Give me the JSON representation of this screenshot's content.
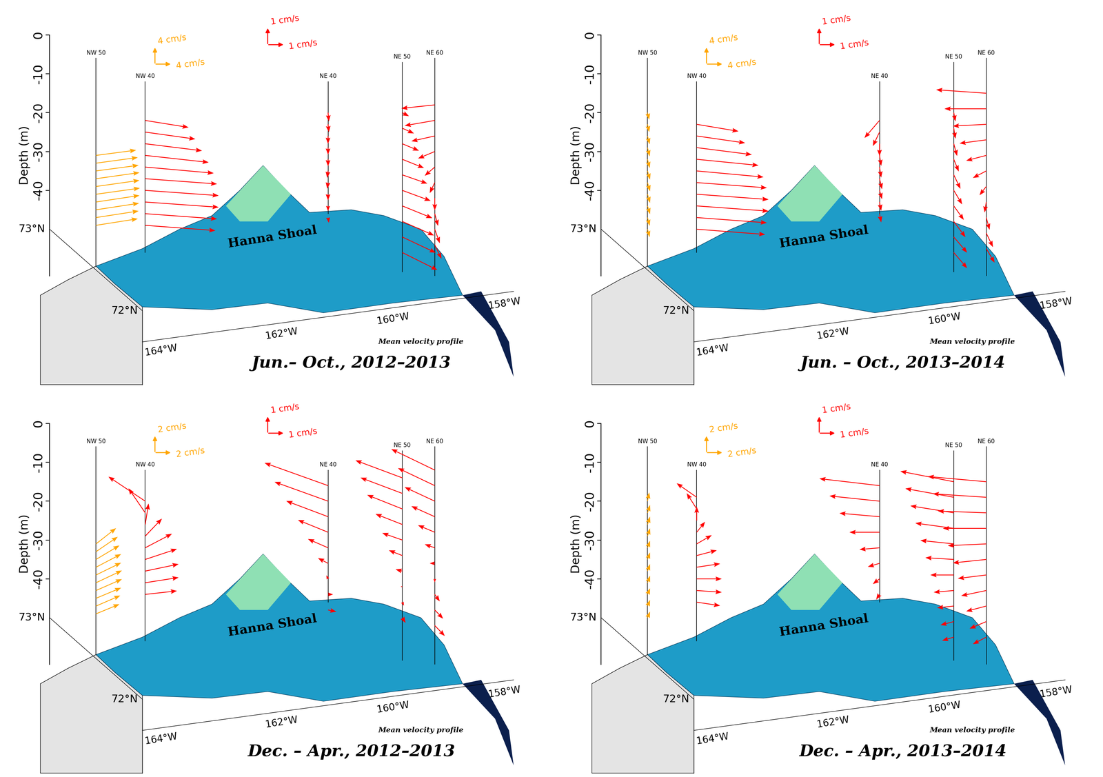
{
  "chart_data": [
    {
      "type": "quiver",
      "title": "Jun.– Oct., 2012–2013",
      "subtitle": "Mean velocity profile",
      "y_label": "Depth (m)",
      "ylim": [
        -62,
        0
      ],
      "yticks": [
        0,
        -10,
        -20,
        -30,
        -40
      ],
      "lat_labels": [
        "73°N",
        "72°N"
      ],
      "lon_labels": [
        "164°W",
        "162°W",
        "160°W",
        "158°W"
      ],
      "feature_label": "Hanna Shoal",
      "scale_keys": [
        {
          "label": "4 cm/s",
          "value": 4,
          "color": "#ffa500"
        },
        {
          "label": "1 cm/s",
          "value": 1,
          "color": "#ff0000"
        }
      ],
      "series": [
        {
          "name": "NW 50",
          "color": "#ffa500",
          "depth": [
            -31,
            -33,
            -35,
            -37,
            -39,
            -41,
            -43,
            -45,
            -47,
            -49
          ],
          "u": [
            9.6,
            10.0,
            10.2,
            10.4,
            10.4,
            10.5,
            10.4,
            10.3,
            10.2,
            10.0
          ],
          "v": [
            1.2,
            1.3,
            1.3,
            1.4,
            1.4,
            1.4,
            1.5,
            1.5,
            1.5,
            1.5
          ]
        },
        {
          "name": "NW 40",
          "color": "#ff0000",
          "depth": [
            -22,
            -25,
            -28,
            -31,
            -34,
            -37,
            -40,
            -43,
            -46,
            -49
          ],
          "u": [
            2.6,
            3.0,
            3.4,
            3.8,
            4.1,
            4.3,
            4.4,
            4.4,
            4.3,
            4.2
          ],
          "v": [
            -0.4,
            -0.4,
            -0.4,
            -0.4,
            -0.35,
            -0.3,
            -0.3,
            -0.3,
            -0.3,
            -0.3
          ]
        },
        {
          "name": "NE 40",
          "color": "#ff0000",
          "depth": [
            -20,
            -23,
            -26,
            -29,
            -32,
            -35,
            -38,
            -41,
            -44,
            -47
          ],
          "u": [
            0.05,
            0.05,
            0.0,
            0.0,
            0.0,
            -0.05,
            -0.05,
            0.0,
            0.0,
            0.05
          ],
          "v": [
            -0.5,
            -0.45,
            -0.45,
            -0.4,
            -0.4,
            -0.4,
            -0.35,
            -0.35,
            -0.3,
            -0.3
          ]
        },
        {
          "name": "NE 50",
          "color": "#ff0000",
          "depth": [
            -20,
            -24,
            -28,
            -32,
            -36,
            -40,
            -44,
            -48,
            -52,
            -56
          ],
          "u": [
            0.4,
            0.7,
            1.0,
            1.3,
            1.5,
            1.7,
            1.8,
            1.9,
            2.0,
            2.1
          ],
          "v": [
            -0.2,
            -0.3,
            -0.4,
            -0.5,
            -0.5,
            -0.6,
            -0.7,
            -0.8,
            -0.9,
            -1.0
          ]
        },
        {
          "name": "NE 60",
          "color": "#ff0000",
          "depth": [
            -18,
            -22,
            -26,
            -30,
            -34,
            -38,
            -42,
            -46,
            -50,
            -54
          ],
          "u": [
            -2.0,
            -1.8,
            -1.4,
            -1.0,
            -0.6,
            -0.3,
            0.0,
            0.2,
            0.3,
            0.4
          ],
          "v": [
            -0.2,
            -0.3,
            -0.3,
            -0.4,
            -0.5,
            -0.6,
            -0.7,
            -0.7,
            -0.8,
            -0.8
          ]
        }
      ]
    },
    {
      "type": "quiver",
      "title": "Jun. – Oct., 2013–2014",
      "subtitle": "Mean velocity profile",
      "y_label": "Depth (m)",
      "ylim": [
        -62,
        0
      ],
      "yticks": [
        0,
        -10,
        -20,
        -30,
        -40
      ],
      "lat_labels": [
        "73°N",
        "72°N"
      ],
      "lon_labels": [
        "164°W",
        "162°W",
        "160°W",
        "158°W"
      ],
      "feature_label": "Hanna Shoal",
      "scale_keys": [
        {
          "label": "4 cm/s",
          "value": 4,
          "color": "#ffa500"
        },
        {
          "label": "1 cm/s",
          "value": 1,
          "color": "#ff0000"
        }
      ],
      "series": [
        {
          "name": "NW 50",
          "color": "#ffa500",
          "depth": [
            -20,
            -23,
            -26,
            -29,
            -32,
            -35,
            -38,
            -41,
            -44,
            -47,
            -50
          ],
          "u": [
            0.4,
            0.4,
            0.5,
            0.5,
            0.5,
            0.6,
            0.6,
            0.6,
            0.6,
            0.5,
            0.5
          ],
          "v": [
            -1.6,
            -1.8,
            -1.9,
            -2.0,
            -2.0,
            -2.0,
            -2.0,
            -2.0,
            -1.9,
            -1.9,
            -1.8
          ]
        },
        {
          "name": "NW 40",
          "color": "#ff0000",
          "depth": [
            -23,
            -26,
            -29,
            -32,
            -35,
            -38,
            -41,
            -44,
            -47,
            -50
          ],
          "u": [
            2.5,
            2.9,
            3.3,
            3.7,
            4.0,
            4.2,
            4.3,
            4.3,
            4.2,
            4.1
          ],
          "v": [
            -0.4,
            -0.4,
            -0.4,
            -0.35,
            -0.35,
            -0.3,
            -0.3,
            -0.3,
            -0.3,
            -0.3
          ]
        },
        {
          "name": "NE 40",
          "color": "#ff0000",
          "depth": [
            -22,
            -25,
            -28,
            -31,
            -34,
            -37,
            -40,
            -43,
            -46
          ],
          "u": [
            -0.9,
            -0.4,
            0.0,
            0.1,
            0.1,
            0.15,
            0.15,
            0.1,
            0.1
          ],
          "v": [
            -1.0,
            -0.8,
            -0.7,
            -0.6,
            -0.6,
            -0.6,
            -0.5,
            -0.5,
            -0.5
          ]
        },
        {
          "name": "NE 50",
          "color": "#ff0000",
          "depth": [
            -20,
            -24,
            -28,
            -32,
            -36,
            -40,
            -44,
            -48,
            -52,
            -56
          ],
          "u": [
            0.1,
            0.1,
            0.2,
            0.3,
            0.4,
            0.5,
            0.6,
            0.7,
            0.8,
            0.8
          ],
          "v": [
            -0.5,
            -0.6,
            -0.7,
            -0.7,
            -0.8,
            -0.8,
            -0.8,
            -0.9,
            -0.9,
            -0.9
          ]
        },
        {
          "name": "NE 60",
          "color": "#ff0000",
          "depth": [
            -15,
            -19,
            -23,
            -27,
            -31,
            -35,
            -39,
            -43,
            -47,
            -51,
            -55
          ],
          "u": [
            -3.0,
            -2.5,
            -2.0,
            -1.6,
            -1.2,
            -0.8,
            -0.4,
            -0.1,
            0.2,
            0.4,
            0.5
          ],
          "v": [
            0.2,
            0.0,
            -0.1,
            -0.2,
            -0.3,
            -0.4,
            -0.5,
            -0.6,
            -0.7,
            -0.8,
            -0.8
          ]
        }
      ]
    },
    {
      "type": "quiver",
      "title": "Dec. – Apr., 2012–2013",
      "subtitle": "Mean velocity profile",
      "y_label": "Depth (m)",
      "ylim": [
        -62,
        0
      ],
      "yticks": [
        0,
        -10,
        -20,
        -30,
        -40
      ],
      "lat_labels": [
        "73°N",
        "72°N"
      ],
      "lon_labels": [
        "164°W",
        "162°W",
        "160°W",
        "158°W"
      ],
      "feature_label": "Hanna Shoal",
      "scale_keys": [
        {
          "label": "2 cm/s",
          "value": 2,
          "color": "#ffa500"
        },
        {
          "label": "1 cm/s",
          "value": 1,
          "color": "#ff0000"
        }
      ],
      "series": [
        {
          "name": "NW 50",
          "color": "#ffa500",
          "depth": [
            -31,
            -33,
            -35,
            -37,
            -39,
            -41,
            -43,
            -45,
            -47,
            -49
          ],
          "u": [
            2.4,
            2.6,
            2.8,
            3.0,
            3.0,
            3.1,
            3.1,
            3.0,
            2.9,
            2.8
          ],
          "v": [
            1.8,
            1.7,
            1.6,
            1.5,
            1.4,
            1.4,
            1.3,
            1.2,
            1.2,
            1.1
          ]
        },
        {
          "name": "NW 40",
          "color": "#ff0000",
          "depth": [
            -20,
            -23,
            -26,
            -29,
            -32,
            -35,
            -38,
            -41,
            -44
          ],
          "u": [
            -2.2,
            -1.0,
            0.2,
            1.0,
            1.6,
            1.9,
            2.0,
            2.0,
            1.9
          ],
          "v": [
            1.4,
            1.4,
            1.2,
            1.0,
            0.8,
            0.6,
            0.4,
            0.3,
            0.2
          ]
        },
        {
          "name": "NE 40",
          "color": "#ff0000",
          "depth": [
            -16,
            -20,
            -24,
            -28,
            -32,
            -36,
            -40,
            -44,
            -48
          ],
          "u": [
            -3.8,
            -3.2,
            -2.5,
            -1.8,
            -1.2,
            -0.6,
            -0.1,
            0.3,
            0.5
          ],
          "v": [
            1.3,
            1.1,
            0.9,
            0.7,
            0.5,
            0.3,
            0.2,
            0.0,
            -0.1
          ]
        },
        {
          "name": "NE 50",
          "color": "#ff0000",
          "depth": [
            -14,
            -18,
            -22,
            -26,
            -30,
            -34,
            -38,
            -42,
            -46,
            -50
          ],
          "u": [
            -2.8,
            -2.5,
            -2.1,
            -1.6,
            -1.2,
            -0.8,
            -0.4,
            -0.1,
            0.1,
            0.2
          ],
          "v": [
            1.0,
            0.9,
            0.8,
            0.6,
            0.4,
            0.3,
            0.1,
            0.0,
            -0.2,
            -0.3
          ]
        },
        {
          "name": "NE 60",
          "color": "#ff0000",
          "depth": [
            -12,
            -16,
            -20,
            -24,
            -28,
            -32,
            -36,
            -40,
            -44,
            -48,
            -52
          ],
          "u": [
            -2.6,
            -2.2,
            -1.8,
            -1.4,
            -1.0,
            -0.6,
            -0.3,
            0.0,
            0.3,
            0.5,
            0.6
          ],
          "v": [
            1.2,
            1.0,
            0.8,
            0.6,
            0.4,
            0.2,
            0.0,
            -0.2,
            -0.4,
            -0.5,
            -0.6
          ]
        }
      ]
    },
    {
      "type": "quiver",
      "title": "Dec. – Apr., 2013–2014",
      "subtitle": "Mean velocity profile",
      "y_label": "Depth (m)",
      "ylim": [
        -62,
        0
      ],
      "yticks": [
        0,
        -10,
        -20,
        -30,
        -40
      ],
      "lat_labels": [
        "73°N",
        "72°N"
      ],
      "lon_labels": [
        "164°W",
        "162°W",
        "160°W",
        "158°W"
      ],
      "feature_label": "Hanna Shoal",
      "scale_keys": [
        {
          "label": "2 cm/s",
          "value": 2,
          "color": "#ffa500"
        },
        {
          "label": "1 cm/s",
          "value": 1,
          "color": "#ff0000"
        }
      ],
      "series": [
        {
          "name": "NW 50",
          "color": "#ffa500",
          "depth": [
            -20,
            -23,
            -26,
            -29,
            -32,
            -35,
            -38,
            -41,
            -44,
            -47,
            -50
          ],
          "u": [
            0.2,
            0.3,
            0.3,
            0.3,
            0.3,
            0.3,
            0.3,
            0.3,
            0.3,
            0.3,
            0.3
          ],
          "v": [
            1.0,
            0.9,
            0.9,
            0.9,
            0.8,
            0.8,
            0.8,
            0.8,
            0.7,
            0.7,
            0.7
          ]
        },
        {
          "name": "NW 40",
          "color": "#ff0000",
          "depth": [
            -19,
            -22,
            -25,
            -28,
            -31,
            -34,
            -37,
            -40,
            -43,
            -46
          ],
          "u": [
            -1.2,
            -0.6,
            0.0,
            0.5,
            0.9,
            1.2,
            1.4,
            1.5,
            1.5,
            1.4
          ],
          "v": [
            0.8,
            0.9,
            0.8,
            0.6,
            0.5,
            0.3,
            0.2,
            0.0,
            -0.1,
            -0.2
          ]
        },
        {
          "name": "NE 40",
          "color": "#ff0000",
          "depth": [
            -16,
            -20,
            -24,
            -28,
            -32,
            -36,
            -40,
            -44
          ],
          "u": [
            -3.6,
            -3.0,
            -2.4,
            -1.8,
            -1.2,
            -0.7,
            -0.4,
            -0.2
          ],
          "v": [
            0.4,
            0.3,
            0.2,
            0.0,
            -0.1,
            -0.2,
            -0.3,
            -0.3
          ]
        },
        {
          "name": "NE 50",
          "color": "#ff0000",
          "depth": [
            -15,
            -19,
            -23,
            -27,
            -31,
            -35,
            -39,
            -43,
            -47,
            -51,
            -55
          ],
          "u": [
            -3.2,
            -2.9,
            -2.6,
            -2.3,
            -2.0,
            -1.7,
            -1.4,
            -1.2,
            -1.0,
            -0.8,
            -0.7
          ],
          "v": [
            0.6,
            0.5,
            0.4,
            0.3,
            0.2,
            0.1,
            0.0,
            -0.1,
            -0.1,
            -0.2,
            -0.2
          ]
        },
        {
          "name": "NE 60",
          "color": "#ff0000",
          "depth": [
            -15,
            -19,
            -23,
            -27,
            -31,
            -35,
            -39,
            -43,
            -47,
            -51,
            -55
          ],
          "u": [
            -3.5,
            -3.2,
            -2.9,
            -2.6,
            -2.3,
            -2.0,
            -1.7,
            -1.5,
            -1.2,
            -1.0,
            -0.8
          ],
          "v": [
            0.3,
            0.2,
            0.1,
            0.0,
            -0.1,
            -0.2,
            -0.2,
            -0.3,
            -0.3,
            -0.4,
            -0.4
          ]
        }
      ]
    }
  ]
}
